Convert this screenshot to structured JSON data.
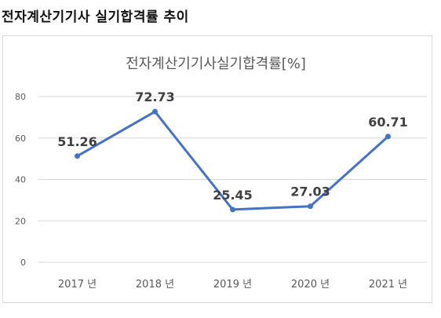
{
  "page": {
    "heading": "전자계산기기사 실기합격률 추이"
  },
  "chart_data": {
    "type": "line",
    "title": "전자계산기기사실기합격률[%]",
    "categories": [
      "2017 년",
      "2018 년",
      "2019 년",
      "2020 년",
      "2021 년"
    ],
    "series": [
      {
        "values": [
          51.26,
          72.73,
          25.45,
          27.03,
          60.71
        ]
      }
    ],
    "data_labels": [
      "51.26",
      "72.73",
      "25.45",
      "27.03",
      "60.71"
    ],
    "yticks": [
      0,
      20,
      40,
      60,
      80
    ],
    "ylim": [
      0,
      80
    ],
    "grid": true,
    "legend": "none",
    "colors": {
      "line": "#4472C4",
      "grid": "#d9d9d9",
      "tick_text": "#595959",
      "label_text": "#404040",
      "frame": "#d9d9d9"
    }
  }
}
